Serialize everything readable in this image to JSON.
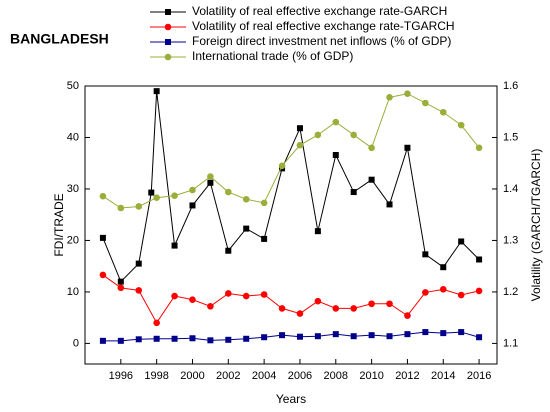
{
  "chart_data": {
    "type": "line",
    "title": "BANGLADESH",
    "x_label": "Years",
    "y_label": "FDI/TRADE",
    "y2_label": "Volatility (GARCH/TGARCH)",
    "xlim": [
      1994,
      2017
    ],
    "xticks": [
      1996,
      1998,
      2000,
      2002,
      2004,
      2006,
      2008,
      2010,
      2012,
      2014,
      2016
    ],
    "ylim": [
      -4,
      50
    ],
    "yticks": [
      0,
      10,
      20,
      30,
      40,
      50
    ],
    "y2lim": [
      1.06,
      1.6
    ],
    "y2ticks": [
      1.1,
      1.2,
      1.3,
      1.4,
      1.5,
      1.6
    ],
    "x": [
      1995,
      1996,
      1997,
      1998,
      1999,
      2000,
      2001,
      2002,
      2003,
      2004,
      2005,
      2006,
      2007,
      2008,
      2009,
      2010,
      2011,
      2012,
      2013,
      2014,
      2015,
      2016
    ],
    "series": [
      {
        "name": "Volatility of real effective exchange rate-GARCH",
        "color": "#000000",
        "marker": "square",
        "axis": "y2",
        "x": [
          1995,
          1996,
          1997,
          1997.7,
          1998,
          1999,
          2000,
          2001,
          2002,
          2003,
          2004,
          2005,
          2006,
          2007,
          2008,
          2009,
          2010,
          2011,
          2012,
          2013,
          2014,
          2015,
          2016
        ],
        "values": [
          1.305,
          1.22,
          1.255,
          1.393,
          1.59,
          1.29,
          1.368,
          1.412,
          1.28,
          1.323,
          1.303,
          1.44,
          1.518,
          1.318,
          1.466,
          1.394,
          1.418,
          1.37,
          1.48,
          1.273,
          1.248,
          1.298,
          1.263
        ]
      },
      {
        "name": "Volatility of real effective exchange rate-TGARCH",
        "color": "#ff0000",
        "marker": "circle",
        "axis": "y2",
        "values": [
          1.233,
          1.208,
          1.203,
          1.14,
          1.192,
          1.185,
          1.172,
          1.197,
          1.192,
          1.195,
          1.168,
          1.158,
          1.182,
          1.168,
          1.168,
          1.177,
          1.177,
          1.154,
          1.199,
          1.205,
          1.194,
          1.202
        ]
      },
      {
        "name": "Foreign direct investment net inflows (% of GDP)",
        "color": "#00008b",
        "marker": "square",
        "axis": "y",
        "values": [
          0.5,
          0.5,
          0.8,
          0.9,
          0.9,
          1,
          0.6,
          0.7,
          0.9,
          1.2,
          1.6,
          1.3,
          1.4,
          1.8,
          1.4,
          1.6,
          1.4,
          1.8,
          2.2,
          2,
          2.2,
          1.2
        ]
      },
      {
        "name": "International trade (% of GDP)",
        "color": "#9aaf3a",
        "marker": "circle",
        "axis": "y",
        "values": [
          28.6,
          26.3,
          26.6,
          28.3,
          28.7,
          29.8,
          32.4,
          29.4,
          28,
          27.3,
          34.5,
          38.5,
          40.5,
          43,
          40.5,
          38,
          47.8,
          48.5,
          46.7,
          44.9,
          42.4,
          38
        ]
      }
    ]
  }
}
